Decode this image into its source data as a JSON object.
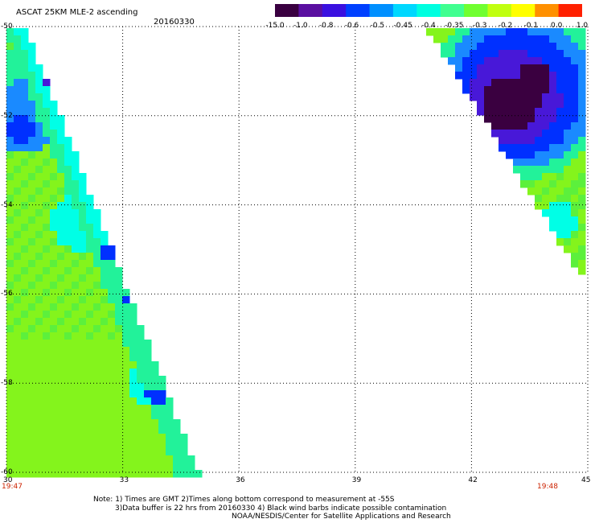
{
  "header": {
    "title": "ASCAT 25KM MLE-2 ascending",
    "date": "20160330"
  },
  "colorbar": {
    "labels": [
      "-15.0",
      "-1.0",
      "-0.8",
      "-0.6",
      "-0.5",
      "-0.45",
      "-0.4",
      "-0.35",
      "-0.3",
      "-0.2",
      "-0.1",
      "0.0",
      "1.0"
    ],
    "colors": [
      "#3a0040",
      "#5a0fa0",
      "#3a10e0",
      "#0040ff",
      "#0090ff",
      "#00d8ff",
      "#00ffe0",
      "#40ff90",
      "#70ff30",
      "#c0ff10",
      "#ffff00",
      "#ff9000",
      "#ff2000"
    ]
  },
  "map": {
    "lon_ticks": [
      "30",
      "33",
      "36",
      "39",
      "42",
      "45"
    ],
    "lat_ticks": [
      "-50",
      "-52",
      "-54",
      "-56",
      "-58",
      "-60"
    ],
    "lon_range": [
      30,
      45
    ],
    "lat_range": [
      -60,
      -50
    ],
    "time_start": "19:47",
    "time_end": "19:48"
  },
  "notes": [
    "Note: 1) Times are GMT 2)Times along bottom correspond to measurement at -55S",
    "3)Data buffer is 22 hrs from 20160330 4) Black wind barbs indicate possible contamination",
    "NOAA/NESDIS/Center for Satellite Applications and Research"
  ]
}
